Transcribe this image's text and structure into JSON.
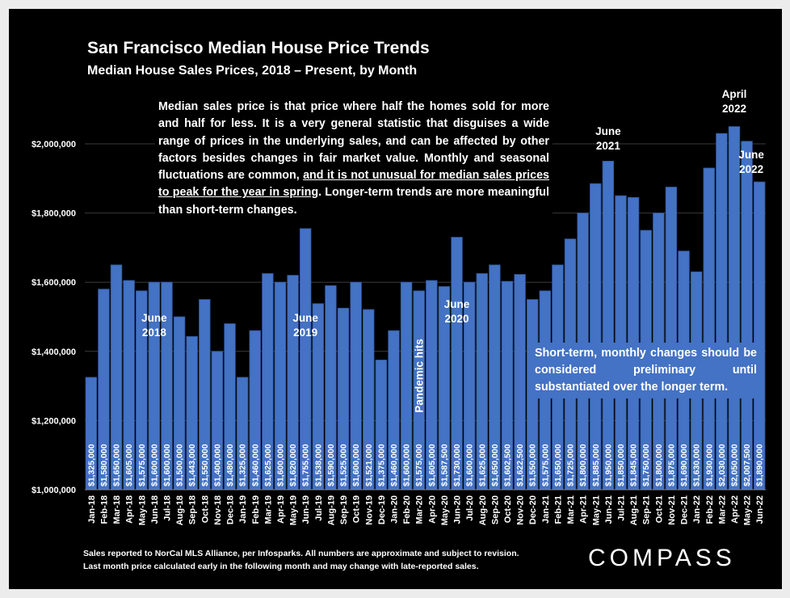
{
  "title": "San Francisco Median House Price Trends",
  "subtitle": "Median House Sales Prices, 2018 – Present, by Month",
  "note": {
    "part1": "Median sales price is that price where half the homes sold for more and half for less. It is a very general statistic that disguises a wide range of prices in the underlying sales, and can be affected by other factors besides changes in fair market value. Monthly and seasonal fluctuations are common, ",
    "underlined": "and it is not unusual for median sales prices to peak for the year in spring",
    "part2": ". Longer-term trends are more meaningful than short-term changes."
  },
  "shortterm_note": "Short-term, monthly changes should be considered preliminary until substantiated over the longer term.",
  "footer": {
    "line1": "Sales reported to NorCal MLS Alliance, per Infosparks. All numbers are approximate and subject to revision.",
    "line2": "Last month price calculated early in the following month and may change with late-reported sales."
  },
  "logo": "COMPASS",
  "colors": {
    "background": "#000000",
    "bar": "#4472c4",
    "bar_border": "#2f5597",
    "text": "#ffffff",
    "grid": "#3a3a3a"
  },
  "chart_data": {
    "type": "bar",
    "ylim": [
      1000000,
      2100000
    ],
    "yticks": [
      1000000,
      1200000,
      1400000,
      1600000,
      1800000,
      2000000
    ],
    "ytick_labels": [
      "$1,000,000",
      "$1,200,000",
      "$1,400,000",
      "$1,600,000",
      "$1,800,000",
      "$2,000,000"
    ],
    "grid": true,
    "categories": [
      "Jan-18",
      "Feb-18",
      "Mar-18",
      "Apr-18",
      "May-18",
      "Jun-18",
      "Jul-18",
      "Aug-18",
      "Sep-18",
      "Oct-18",
      "Nov-18",
      "Dec-18",
      "Jan-19",
      "Feb-19",
      "Mar-19",
      "Apr-19",
      "May-19",
      "Jun-19",
      "Jul-19",
      "Aug-19",
      "Sep-19",
      "Oct-19",
      "Nov-19",
      "Dec-19",
      "Jan-20",
      "Feb-20",
      "Mar-20",
      "Apr-20",
      "May-20",
      "Jun-20",
      "Jul-20",
      "Aug-20",
      "Sep-20",
      "Oct-20",
      "Nov-20",
      "Dec-20",
      "Jan-21",
      "Feb-21",
      "Mar-21",
      "Apr-21",
      "May-21",
      "Jun-21",
      "Jul-21",
      "Aug-21",
      "Sep-21",
      "Oct-21",
      "Nov-21",
      "Dec-21",
      "Jan-22",
      "Feb-22",
      "Mar-22",
      "Apr-22",
      "May-22",
      "Jun-22"
    ],
    "values": [
      1325000,
      1580000,
      1650000,
      1605000,
      1575000,
      1600000,
      1600000,
      1500000,
      1443000,
      1550000,
      1400000,
      1480000,
      1325000,
      1460000,
      1625000,
      1600000,
      1620000,
      1755000,
      1538000,
      1590000,
      1525000,
      1600000,
      1521000,
      1375000,
      1460000,
      1600000,
      1575000,
      1605000,
      1587500,
      1730000,
      1600000,
      1625000,
      1650000,
      1602500,
      1622500,
      1550000,
      1575000,
      1650000,
      1725000,
      1800000,
      1885000,
      1950000,
      1850000,
      1845000,
      1750000,
      1800000,
      1875000,
      1690000,
      1630000,
      1930000,
      2030000,
      2050000,
      2007500,
      1890000
    ],
    "value_labels": [
      "$1,325,000",
      "$1,580,000",
      "$1,650,000",
      "$1,605,000",
      "$1,575,000",
      "$1,600,000",
      "$1,600,000",
      "$1,500,000",
      "$1,443,000",
      "$1,550,000",
      "$1,400,000",
      "$1,480,000",
      "$1,325,000",
      "$1,460,000",
      "$1,625,000",
      "$1,600,000",
      "$1,620,000",
      "$1,755,000",
      "$1,538,000",
      "$1,590,000",
      "$1,525,000",
      "$1,600,000",
      "$1,521,000",
      "$1,375,000",
      "$1,460,000",
      "$1,600,000",
      "$1,575,000",
      "$1,605,000",
      "$1,587,500",
      "$1,730,000",
      "$1,600,000",
      "$1,625,000",
      "$1,650,000",
      "$1,602,500",
      "$1,622,500",
      "$1,550,000",
      "$1,575,000",
      "$1,650,000",
      "$1,725,000",
      "$1,800,000",
      "$1,885,000",
      "$1,950,000",
      "$1,850,000",
      "$1,845,000",
      "$1,750,000",
      "$1,800,000",
      "$1,875,000",
      "$1,690,000",
      "$1,630,000",
      "$1,930,000",
      "$2,030,000",
      "$2,050,000",
      "$2,007,500",
      "$1,890,000"
    ],
    "annotations": [
      {
        "lines": [
          "June",
          "2018"
        ],
        "category": "Jun-18"
      },
      {
        "lines": [
          "June",
          "2019"
        ],
        "category": "Jun-19"
      },
      {
        "lines": [
          "June",
          "2020"
        ],
        "category": "Jun-20"
      },
      {
        "lines": [
          "June",
          "2021"
        ],
        "category": "Jun-21"
      },
      {
        "lines": [
          "April",
          "2022"
        ],
        "category": "Apr-22"
      },
      {
        "lines": [
          "June",
          "2022"
        ],
        "category": "Jun-22"
      },
      {
        "lines": [
          "Pandemic hits"
        ],
        "category": "Mar-20",
        "vertical": true
      }
    ]
  }
}
